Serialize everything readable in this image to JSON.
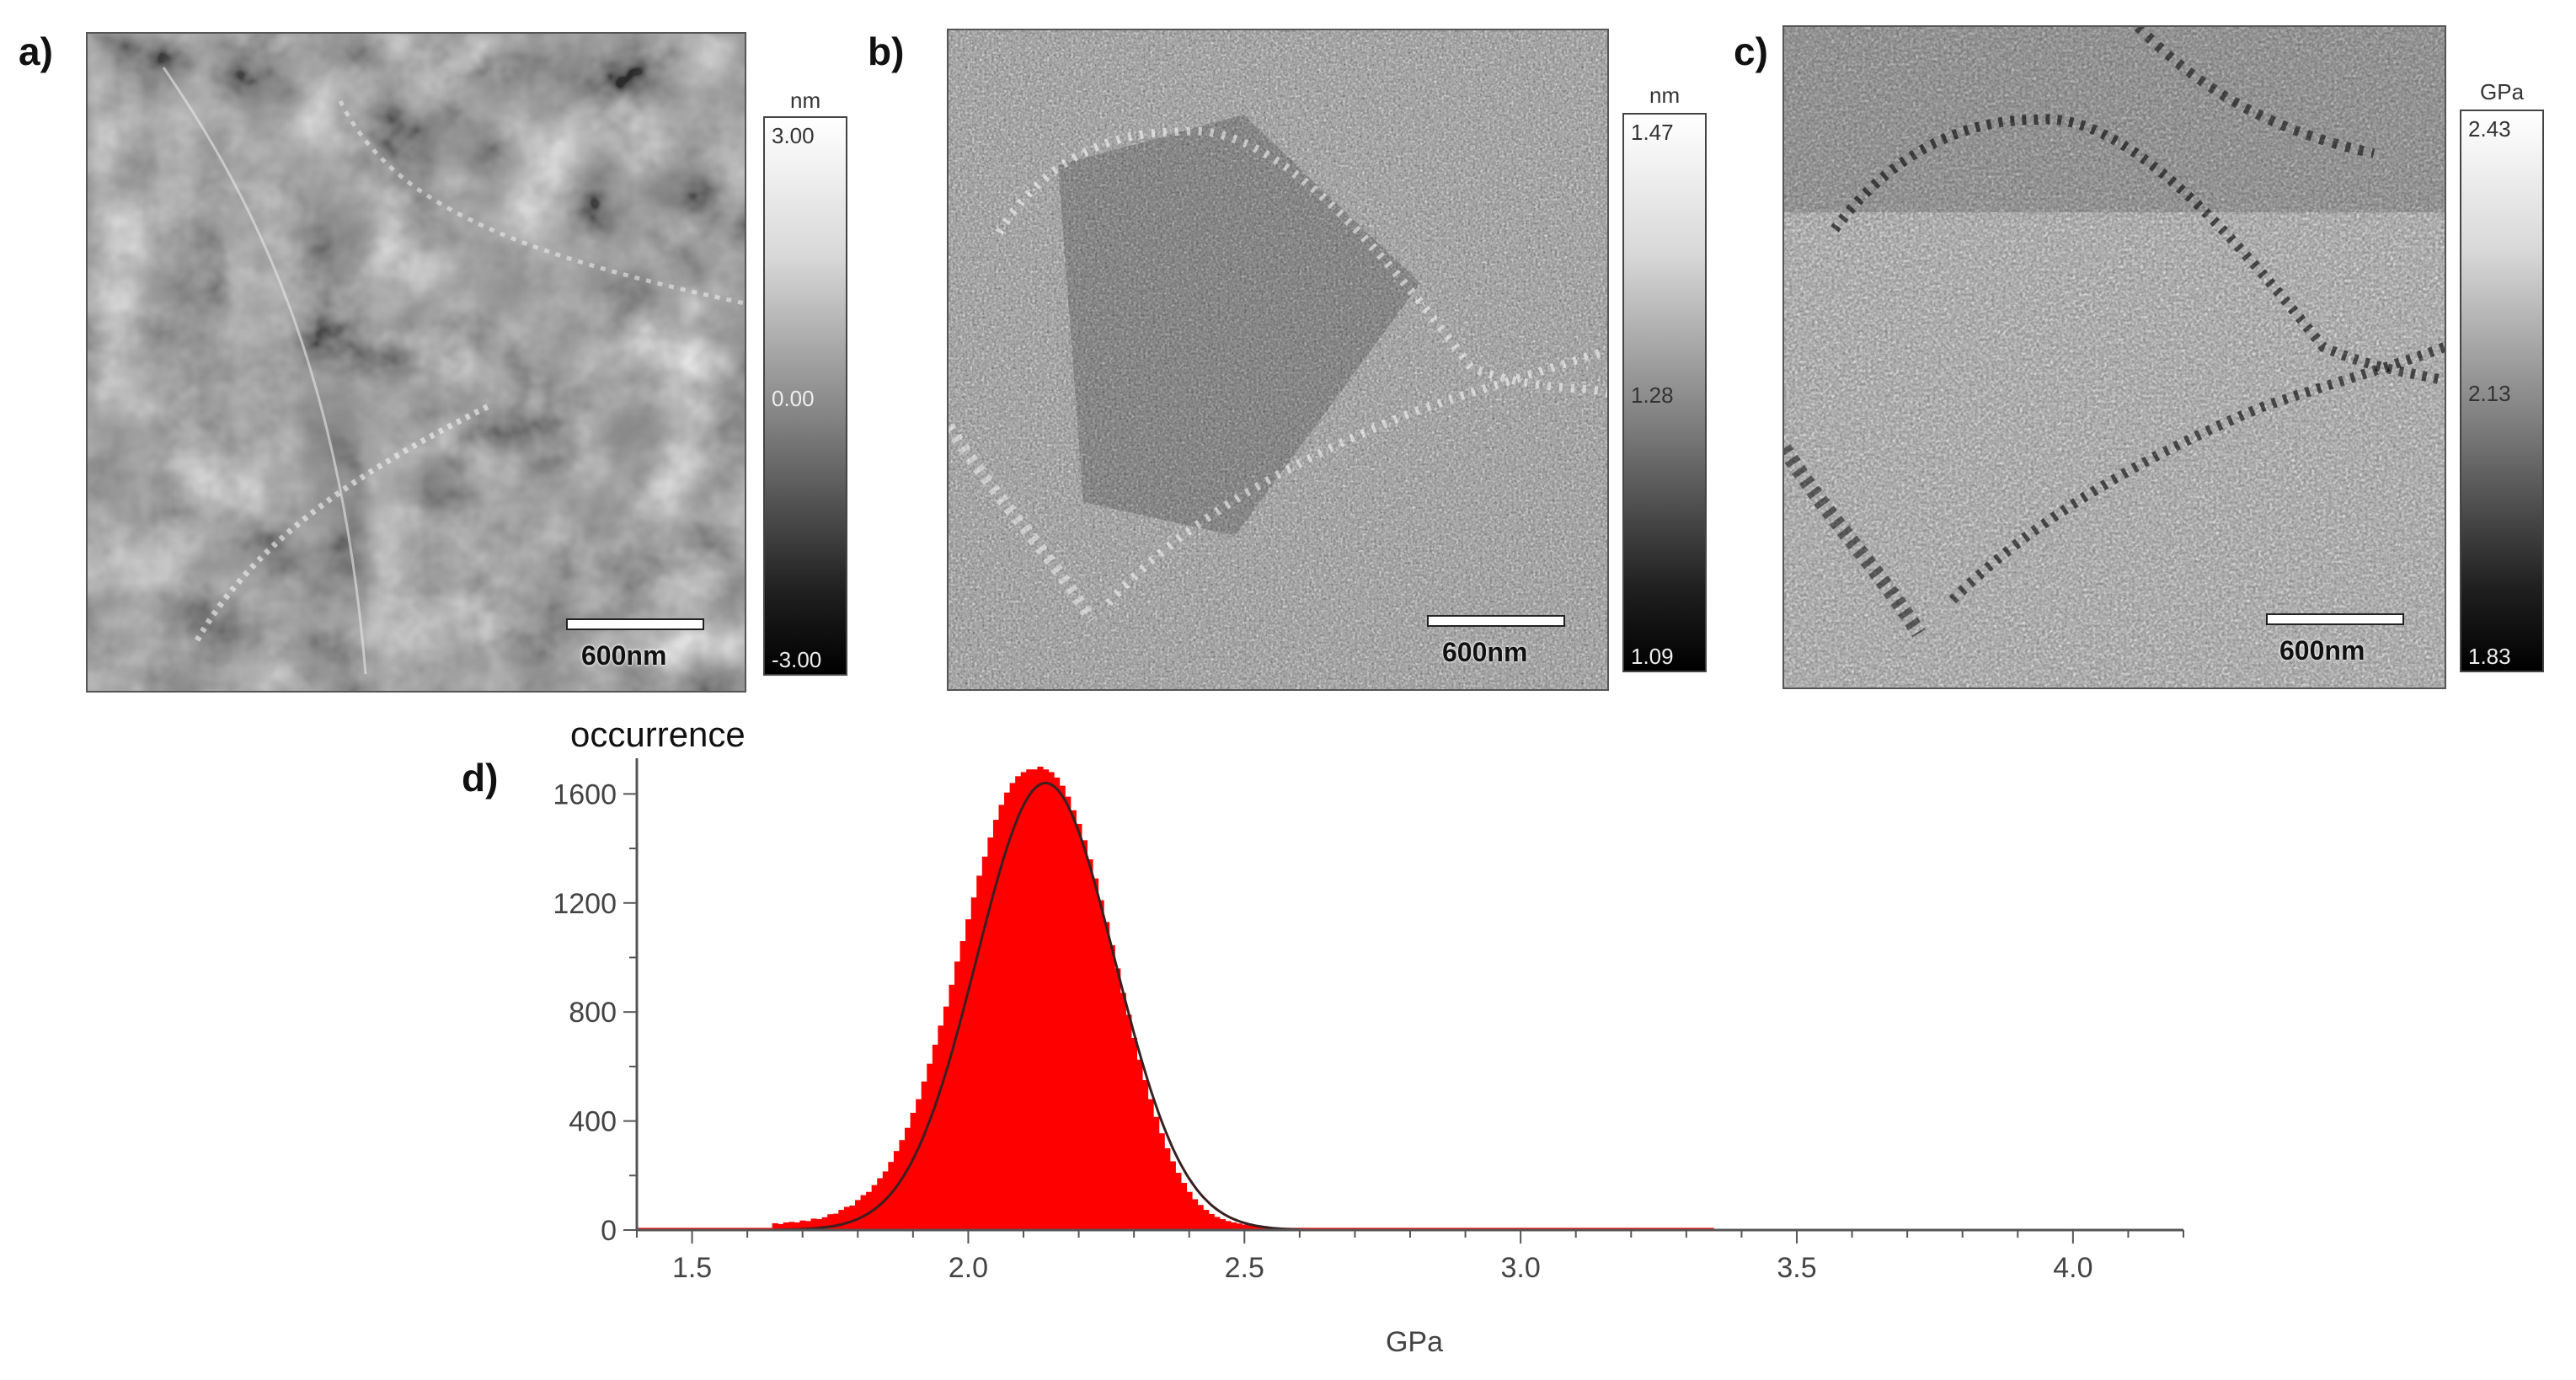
{
  "panels": {
    "a": {
      "letter": "a)",
      "unit": "nm",
      "max": "3.00",
      "mid": "0.00",
      "min": "-3.00",
      "scalebar": "600nm"
    },
    "b": {
      "letter": "b)",
      "unit": "nm",
      "max": "1.47",
      "mid": "1.28",
      "min": "1.09",
      "scalebar": "600nm"
    },
    "c": {
      "letter": "c)",
      "unit": "GPa",
      "max": "2.43",
      "mid": "2.13",
      "min": "1.83",
      "scalebar": "600nm"
    },
    "d": {
      "letter": "d)"
    }
  },
  "colors": {
    "hist_fill": "#ff0000",
    "fit_line": "#3a2020",
    "axis": "#555555"
  },
  "chart_data": {
    "type": "bar",
    "title": "",
    "ylabel": "occurrence",
    "xlabel": "GPa",
    "xlim": [
      1.4,
      4.2
    ],
    "ylim": [
      0,
      1700
    ],
    "x_ticks": [
      1.5,
      2.0,
      2.5,
      3.0,
      3.5,
      4.0
    ],
    "x_tick_labels": [
      "1.5",
      "2.0",
      "2.5",
      "3.0",
      "3.5",
      "4.0"
    ],
    "y_ticks": [
      0,
      400,
      800,
      1200,
      1600
    ],
    "y_tick_labels": [
      "0",
      "400",
      "800",
      "1200",
      "1600"
    ],
    "bin_width": 0.01,
    "x": [
      1.65,
      1.66,
      1.67,
      1.68,
      1.69,
      1.7,
      1.71,
      1.72,
      1.73,
      1.74,
      1.75,
      1.76,
      1.77,
      1.78,
      1.79,
      1.8,
      1.81,
      1.82,
      1.83,
      1.84,
      1.85,
      1.86,
      1.87,
      1.88,
      1.89,
      1.9,
      1.91,
      1.92,
      1.93,
      1.94,
      1.95,
      1.96,
      1.97,
      1.98,
      1.99,
      2.0,
      2.01,
      2.02,
      2.03,
      2.04,
      2.05,
      2.06,
      2.07,
      2.08,
      2.09,
      2.1,
      2.11,
      2.12,
      2.13,
      2.14,
      2.15,
      2.16,
      2.17,
      2.18,
      2.19,
      2.2,
      2.21,
      2.22,
      2.23,
      2.24,
      2.25,
      2.26,
      2.27,
      2.28,
      2.29,
      2.3,
      2.31,
      2.32,
      2.33,
      2.34,
      2.35,
      2.36,
      2.37,
      2.38,
      2.39,
      2.4,
      2.41,
      2.42,
      2.43,
      2.44,
      2.45,
      2.46,
      2.47,
      2.48,
      2.49,
      2.5,
      2.51,
      2.52,
      2.53,
      2.54,
      2.55,
      2.56,
      2.57,
      2.58,
      2.59,
      2.6
    ],
    "values": [
      25,
      22,
      28,
      30,
      28,
      35,
      33,
      42,
      40,
      47,
      58,
      60,
      74,
      85,
      90,
      110,
      128,
      140,
      165,
      190,
      215,
      250,
      290,
      330,
      375,
      430,
      480,
      545,
      610,
      680,
      750,
      820,
      900,
      985,
      1060,
      1140,
      1220,
      1300,
      1370,
      1440,
      1505,
      1560,
      1605,
      1640,
      1665,
      1680,
      1690,
      1690,
      1700,
      1690,
      1680,
      1660,
      1630,
      1590,
      1540,
      1490,
      1430,
      1360,
      1290,
      1210,
      1130,
      1045,
      960,
      870,
      790,
      705,
      625,
      550,
      480,
      415,
      355,
      300,
      252,
      210,
      173,
      140,
      113,
      92,
      74,
      59,
      48,
      40,
      33,
      28,
      24,
      20,
      17,
      15,
      13,
      11,
      10,
      9,
      8,
      7,
      6,
      5
    ],
    "fit": {
      "type": "gaussian",
      "amplitude": 1640,
      "mean": 2.14,
      "sigma": 0.125,
      "x_start": 1.65,
      "x_end": 2.6
    },
    "baseline": {
      "y": 8,
      "x_start": 1.4,
      "x_end": 3.35
    }
  }
}
